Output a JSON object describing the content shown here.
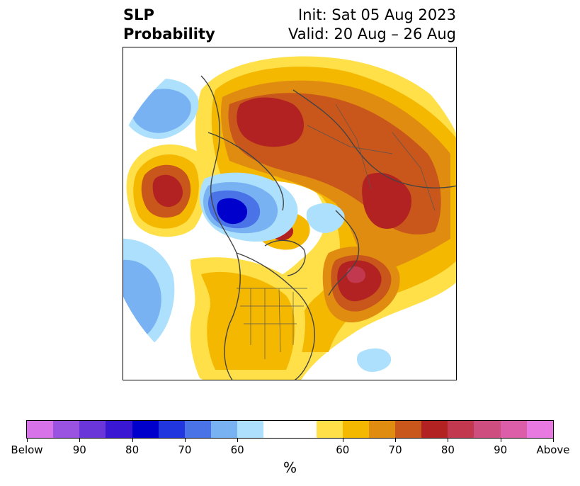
{
  "header": {
    "title_line1": "SLP",
    "title_line2": "Probability",
    "init_label": "Init: Sat 05 Aug 2023",
    "valid_label": "Valid: 20 Aug – 26 Aug"
  },
  "colorbar": {
    "colors": [
      "#d772e8",
      "#9a53e0",
      "#6a35d9",
      "#3a18d3",
      "#0000cc",
      "#2236e0",
      "#4a73e8",
      "#78b2f2",
      "#ace0fc",
      "#ffffff",
      "#ffffff",
      "#ffe048",
      "#f5b800",
      "#e08c10",
      "#c9561a",
      "#b22222",
      "#c2384f",
      "#cf4e80",
      "#dc5ea8",
      "#e879e0"
    ],
    "tick_labels": [
      "Below",
      "90",
      "80",
      "70",
      "60",
      "60",
      "70",
      "80",
      "90",
      "Above"
    ],
    "unit": "%"
  },
  "colors": {
    "above_high": "#b22222",
    "above_mid": "#c9561a",
    "above_low": "#e08c10",
    "above_min": "#f5b800",
    "above_faint": "#ffe048",
    "below_faint": "#ace0fc",
    "below_low": "#78b2f2",
    "below_mid": "#4a73e8",
    "below_high": "#0000cc"
  }
}
